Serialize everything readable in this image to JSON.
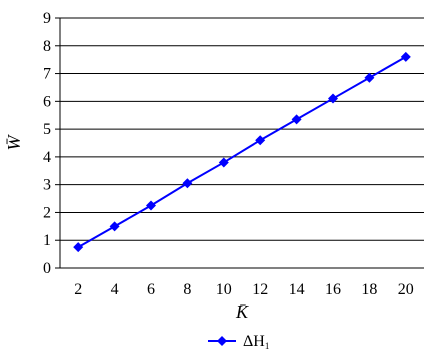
{
  "chart_data": {
    "type": "line",
    "xlabel": "K̄",
    "ylabel": "W̄",
    "x": [
      2,
      4,
      6,
      8,
      10,
      12,
      14,
      16,
      18,
      20
    ],
    "xlim": [
      1,
      21
    ],
    "ylim": [
      0,
      9
    ],
    "x_ticks": [
      "2",
      "4",
      "6",
      "8",
      "10",
      "12",
      "14",
      "16",
      "18",
      "20"
    ],
    "y_ticks": [
      "0",
      "1",
      "2",
      "3",
      "4",
      "5",
      "6",
      "7",
      "8",
      "9"
    ],
    "grid": "horizontal",
    "legend_position": "bottom",
    "series": [
      {
        "name": "ΔH",
        "name_subscript": "1",
        "color": "#0000ff",
        "marker": "diamond",
        "values": [
          0.75,
          1.5,
          2.25,
          3.05,
          3.8,
          4.6,
          5.35,
          6.1,
          6.85,
          7.6
        ]
      }
    ]
  }
}
